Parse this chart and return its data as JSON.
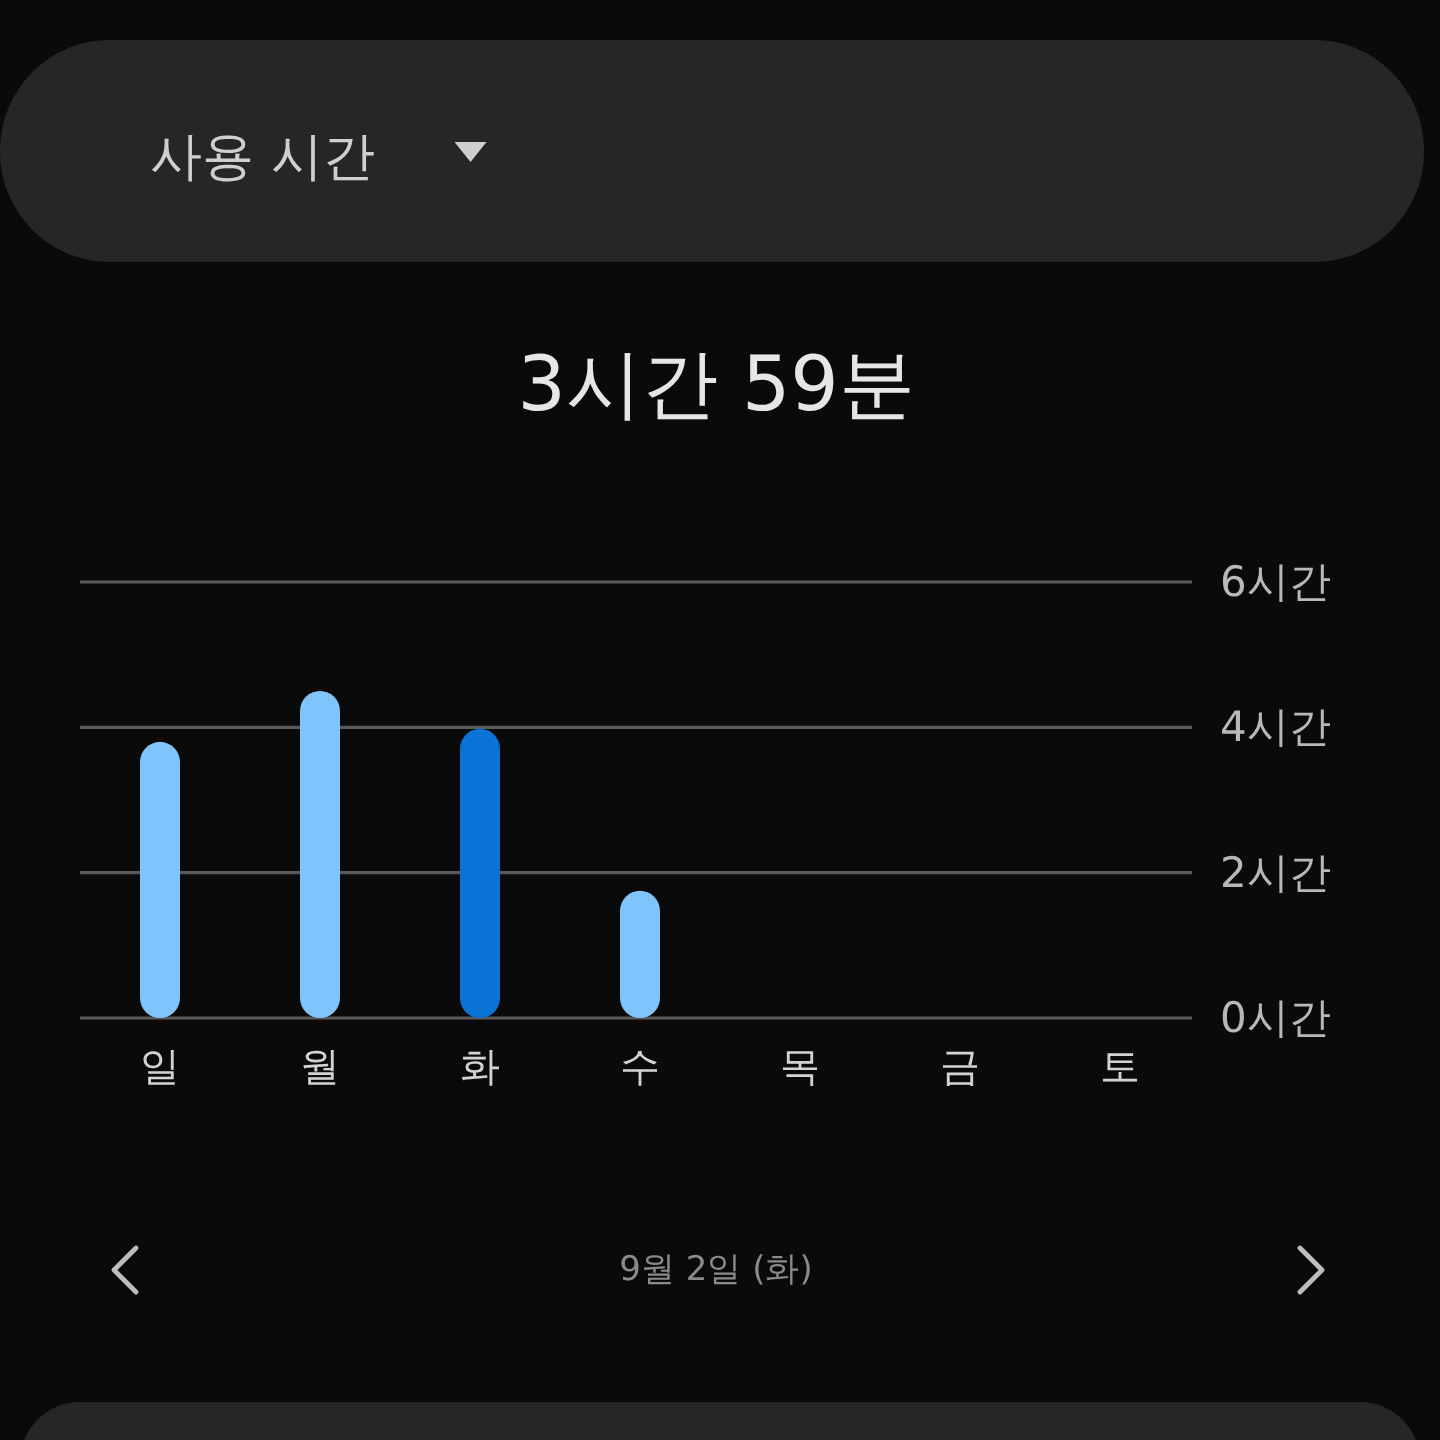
{
  "chart_data": {
    "type": "bar",
    "title": "사용 시간",
    "subtitle": "3시간 59분",
    "categories": [
      "일",
      "월",
      "화",
      "수",
      "목",
      "금",
      "토"
    ],
    "values": [
      3.8,
      4.5,
      3.98,
      1.75,
      null,
      null,
      null
    ],
    "colors": [
      "#7fc4fa",
      "#7fc4fa",
      "#0a74d6",
      "#7fc4fa",
      null,
      null,
      null
    ],
    "ylim": [
      0,
      6
    ],
    "yticks": [
      {
        "value": 0,
        "label": "0시간"
      },
      {
        "value": 2,
        "label": "2시간"
      },
      {
        "value": 4,
        "label": "4시간"
      },
      {
        "value": 6,
        "label": "6시간"
      }
    ],
    "grid": "y",
    "annotations": [
      "9월 2일 (화)"
    ]
  }
}
